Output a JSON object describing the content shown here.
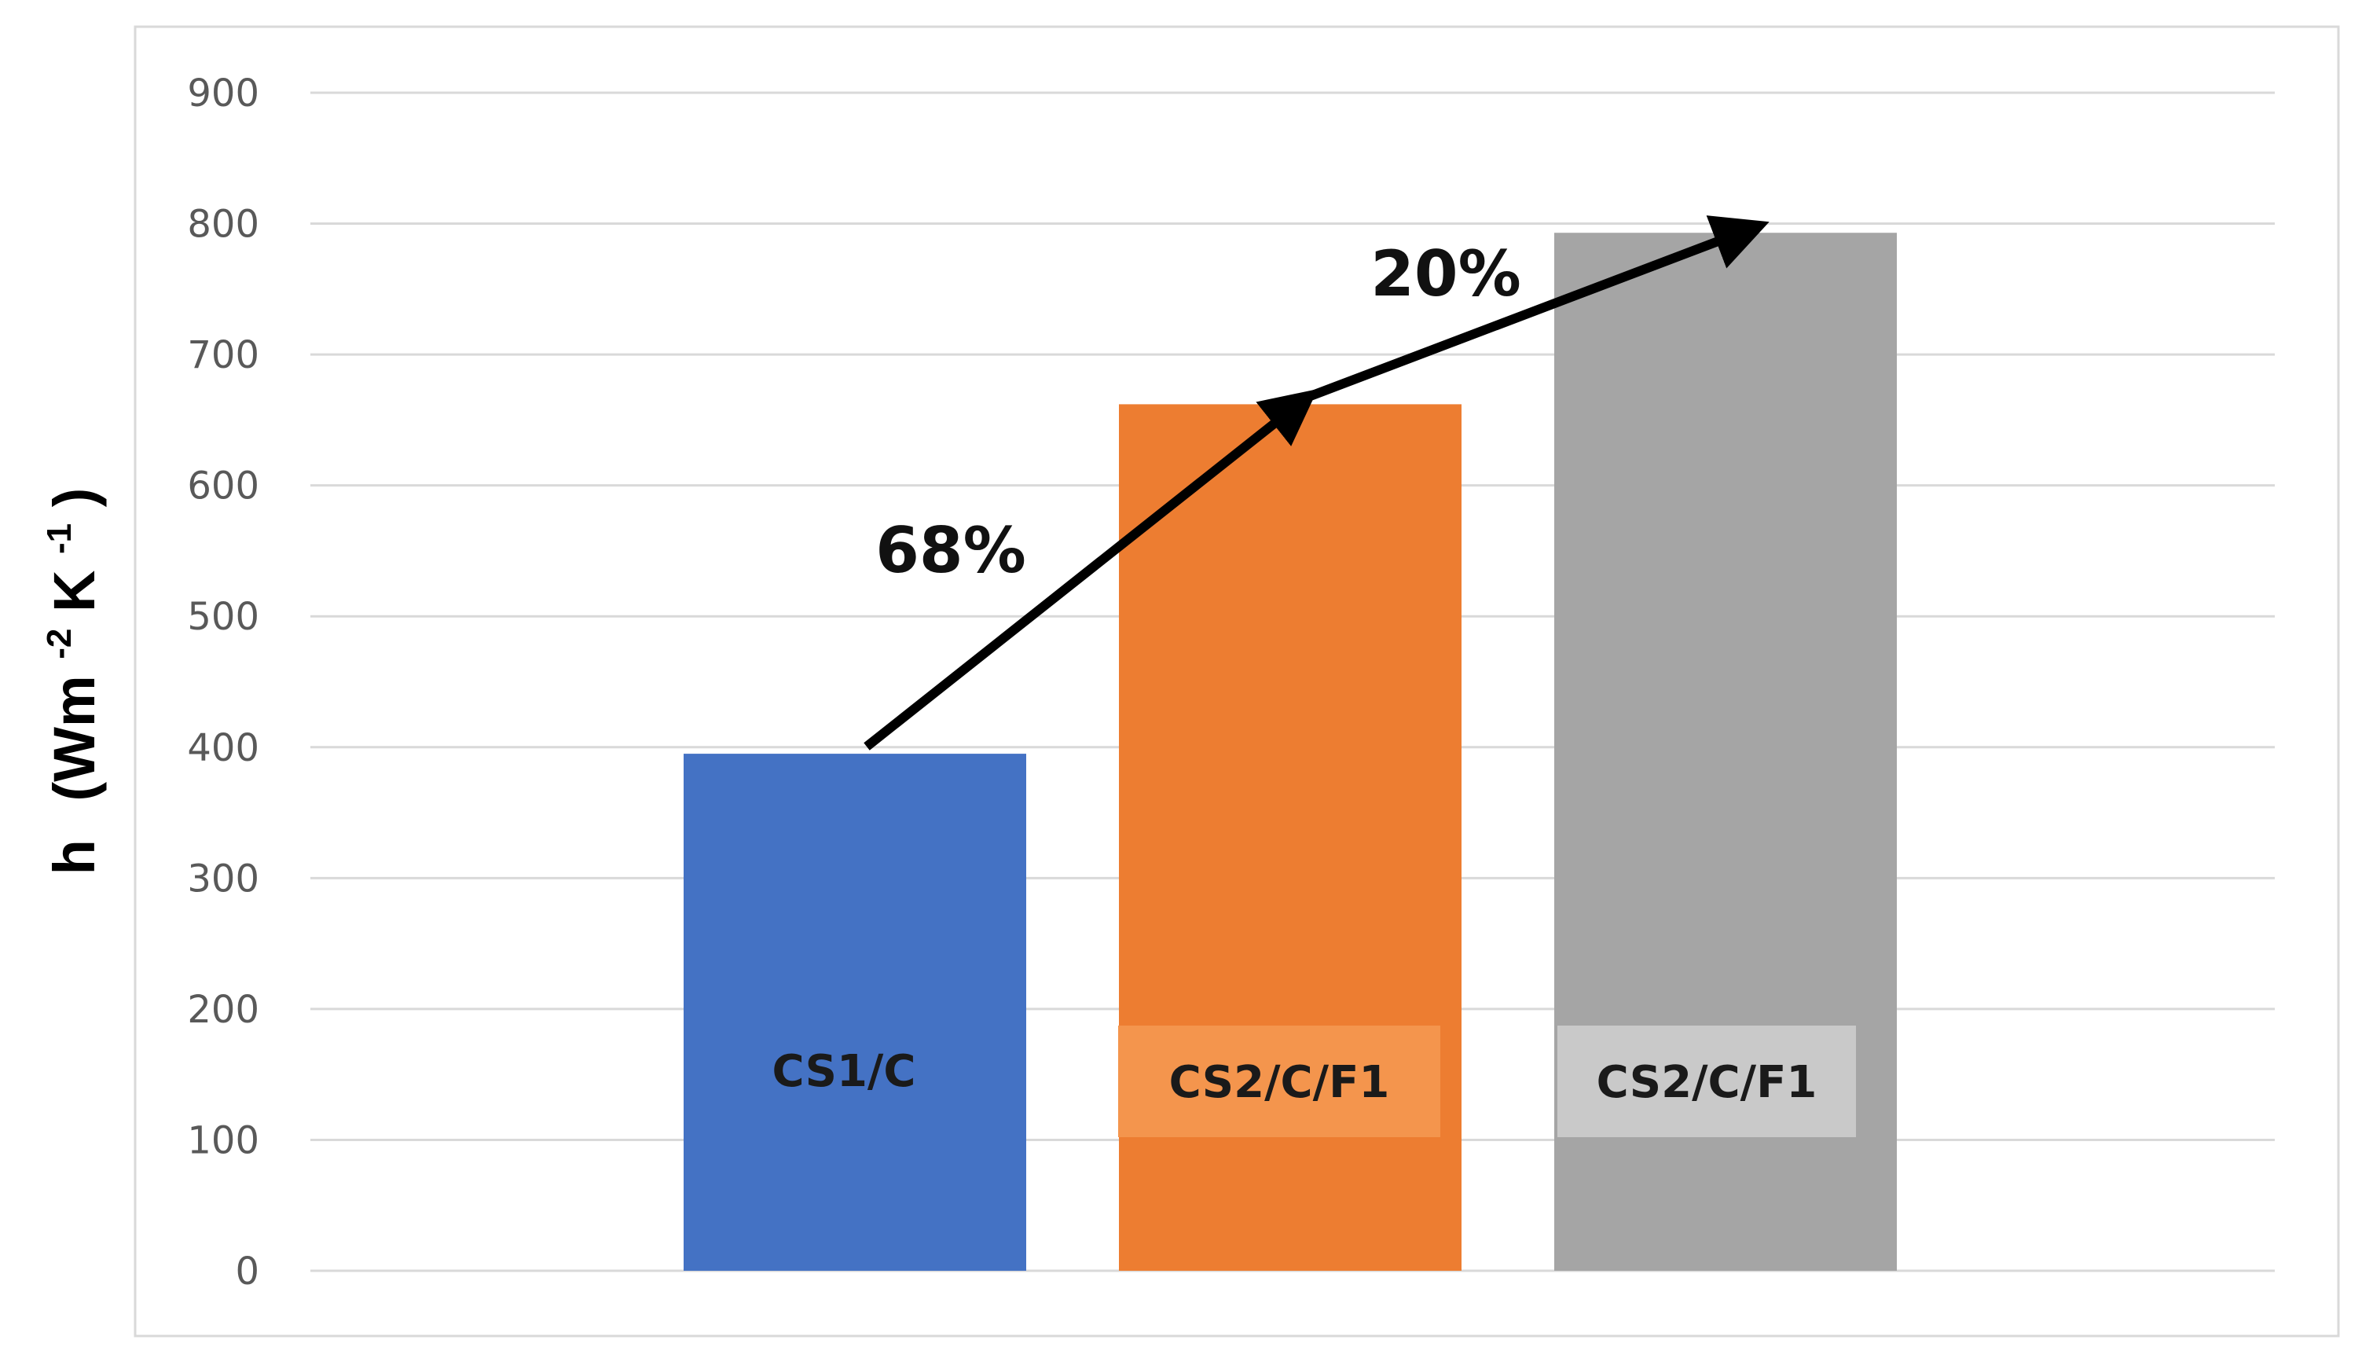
{
  "chart_data": {
    "type": "bar",
    "categories": [
      "CS1/C",
      "CS2/C/F1",
      "CS2/C/F1"
    ],
    "values": [
      395,
      662,
      793
    ],
    "ylabel": {
      "main": "h",
      "open": "(Wm",
      "exp1": "-2",
      "mid": "K",
      "exp2": "-1",
      "close": ")"
    },
    "ylim": [
      0,
      900
    ],
    "yticks": [
      "0",
      "100",
      "200",
      "300",
      "400",
      "500",
      "600",
      "700",
      "800",
      "900"
    ],
    "grid": true,
    "legend": "none",
    "colors": [
      "#4472C4",
      "#ED7D31",
      "#A5A5A5"
    ],
    "label_box_colors": [
      "#4472C4",
      "#F4954D",
      "#C9C9C9"
    ],
    "annotations": [
      {
        "text": "68%",
        "from_bar": 0,
        "to_bar": 1
      },
      {
        "text": "20%",
        "from_bar": 1,
        "to_bar": 2
      }
    ]
  }
}
